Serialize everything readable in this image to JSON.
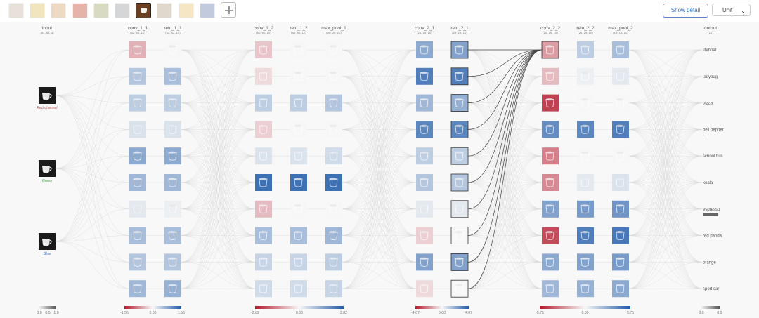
{
  "toolbar": {
    "thumbnails": [
      {
        "name": "thumb-1",
        "color": "#c9b9a6"
      },
      {
        "name": "thumb-2",
        "color": "#e0c36a"
      },
      {
        "name": "thumb-3",
        "color": "#d6a574"
      },
      {
        "name": "thumb-4",
        "color": "#c64c3a"
      },
      {
        "name": "thumb-5",
        "color": "#a4ab6e"
      },
      {
        "name": "thumb-6",
        "color": "#9aa0a4"
      },
      {
        "name": "thumb-7",
        "color": "#6b3f22"
      },
      {
        "name": "thumb-8",
        "color": "#b7a48a"
      },
      {
        "name": "thumb-9",
        "color": "#e8c477"
      },
      {
        "name": "thumb-10",
        "color": "#6d86b0"
      }
    ],
    "selected_index": 6,
    "add_icon": "plus-icon",
    "show_detail_label": "Show detail",
    "unit_value": "Unit",
    "unit_icon": "chevron-down-icon"
  },
  "layers": [
    {
      "id": "input",
      "label": "input",
      "dims": "(64, 64, 3)"
    },
    {
      "id": "conv_1_1",
      "label": "conv_1_1",
      "dims": "(62, 62, 10)"
    },
    {
      "id": "relu_1_1",
      "label": "relu_1_1",
      "dims": "(62, 62, 10)"
    },
    {
      "id": "conv_1_2",
      "label": "conv_1_2",
      "dims": "(60, 60, 10)"
    },
    {
      "id": "relu_1_2",
      "label": "relu_1_2",
      "dims": "(60, 60, 10)"
    },
    {
      "id": "max_pool_1",
      "label": "max_pool_1",
      "dims": "(30, 30, 10)"
    },
    {
      "id": "conv_2_1",
      "label": "conv_2_1",
      "dims": "(28, 28, 10)"
    },
    {
      "id": "relu_2_1",
      "label": "relu_2_1",
      "dims": "(28, 28, 10)"
    },
    {
      "id": "conv_2_2",
      "label": "conv_2_2",
      "dims": "(26, 26, 10)"
    },
    {
      "id": "relu_2_2",
      "label": "relu_2_2",
      "dims": "(26, 26, 10)"
    },
    {
      "id": "max_pool_2",
      "label": "max_pool_2",
      "dims": "(13, 13, 10)"
    },
    {
      "id": "output",
      "label": "output",
      "dims": "(10)"
    }
  ],
  "input_channels": [
    {
      "label": "Red channel",
      "color": "#c0504d"
    },
    {
      "label": "Green",
      "color": "#4aa84a"
    },
    {
      "label": "Blue",
      "color": "#3a6fc4"
    }
  ],
  "classes": [
    {
      "label": "lifeboat",
      "prob": 0.0
    },
    {
      "label": "ladybug",
      "prob": 0.0
    },
    {
      "label": "pizza",
      "prob": 0.0
    },
    {
      "label": "bell pepper",
      "prob": 0.02
    },
    {
      "label": "school bus",
      "prob": 0.0
    },
    {
      "label": "koala",
      "prob": 0.0
    },
    {
      "label": "espresso",
      "prob": 0.92
    },
    {
      "label": "red panda",
      "prob": 0.0
    },
    {
      "label": "orange",
      "prob": 0.04
    },
    {
      "label": "sport car",
      "prob": 0.0
    }
  ],
  "activations": {
    "conv_1_1": [
      -0.35,
      0.35,
      0.3,
      0.15,
      0.55,
      0.45,
      0.1,
      0.4,
      0.35,
      0.45
    ],
    "relu_1_1": [
      0.0,
      0.4,
      0.3,
      0.15,
      0.55,
      0.45,
      0.05,
      0.4,
      0.35,
      0.5
    ],
    "conv_1_2": [
      -0.25,
      -0.15,
      0.3,
      -0.2,
      0.15,
      0.95,
      -0.3,
      0.4,
      0.25,
      0.2
    ],
    "relu_1_2": [
      0.0,
      0.0,
      0.3,
      0.0,
      0.15,
      0.95,
      0.0,
      0.4,
      0.25,
      0.2
    ],
    "max_pool_1": [
      0.0,
      0.0,
      0.35,
      0.0,
      0.2,
      0.95,
      0.0,
      0.45,
      0.3,
      0.25
    ],
    "conv_2_1": [
      0.55,
      0.85,
      0.45,
      0.8,
      0.3,
      0.35,
      0.1,
      -0.2,
      0.6,
      -0.15
    ],
    "relu_2_1": [
      0.6,
      0.85,
      0.5,
      0.8,
      0.3,
      0.35,
      0.1,
      0.0,
      0.6,
      0.0
    ],
    "conv_2_2": [
      -0.45,
      -0.3,
      -0.9,
      0.75,
      -0.6,
      -0.55,
      0.6,
      -0.85,
      0.55,
      0.45
    ],
    "relu_2_2": [
      0.3,
      0.05,
      0.0,
      0.8,
      0.0,
      0.1,
      0.65,
      0.85,
      0.6,
      0.5
    ],
    "max_pool_2": [
      0.4,
      0.1,
      0.0,
      0.85,
      0.0,
      0.15,
      0.7,
      0.9,
      0.65,
      0.55
    ]
  },
  "selected_unit": {
    "layer": "relu_2_1",
    "unit": 0
  },
  "legends": [
    {
      "name": "legend-input",
      "min": "0.0",
      "mid": "0.5",
      "max": "1.0",
      "type": "gray"
    },
    {
      "name": "legend-block1",
      "min": "-1.56",
      "mid": "0.00",
      "max": "1.56",
      "type": "diverging"
    },
    {
      "name": "legend-block2",
      "min": "-2.82",
      "mid": "0.00",
      "max": "2.82",
      "type": "diverging"
    },
    {
      "name": "legend-conv2-1",
      "min": "-4.07",
      "mid": "0.00",
      "max": "4.07",
      "type": "diverging"
    },
    {
      "name": "legend-block3",
      "min": "-5.75",
      "mid": "0.00",
      "max": "5.75",
      "type": "diverging"
    },
    {
      "name": "legend-output",
      "min": "0.0",
      "mid": "",
      "max": "0.9",
      "type": "gray"
    }
  ],
  "colors": {
    "positive": "#1f5aa8",
    "negative": "#b2182b",
    "neutral": "#f7f7f7",
    "edge": "#d9d9d9",
    "selected_edge": "#444444",
    "bar": "#666666"
  }
}
